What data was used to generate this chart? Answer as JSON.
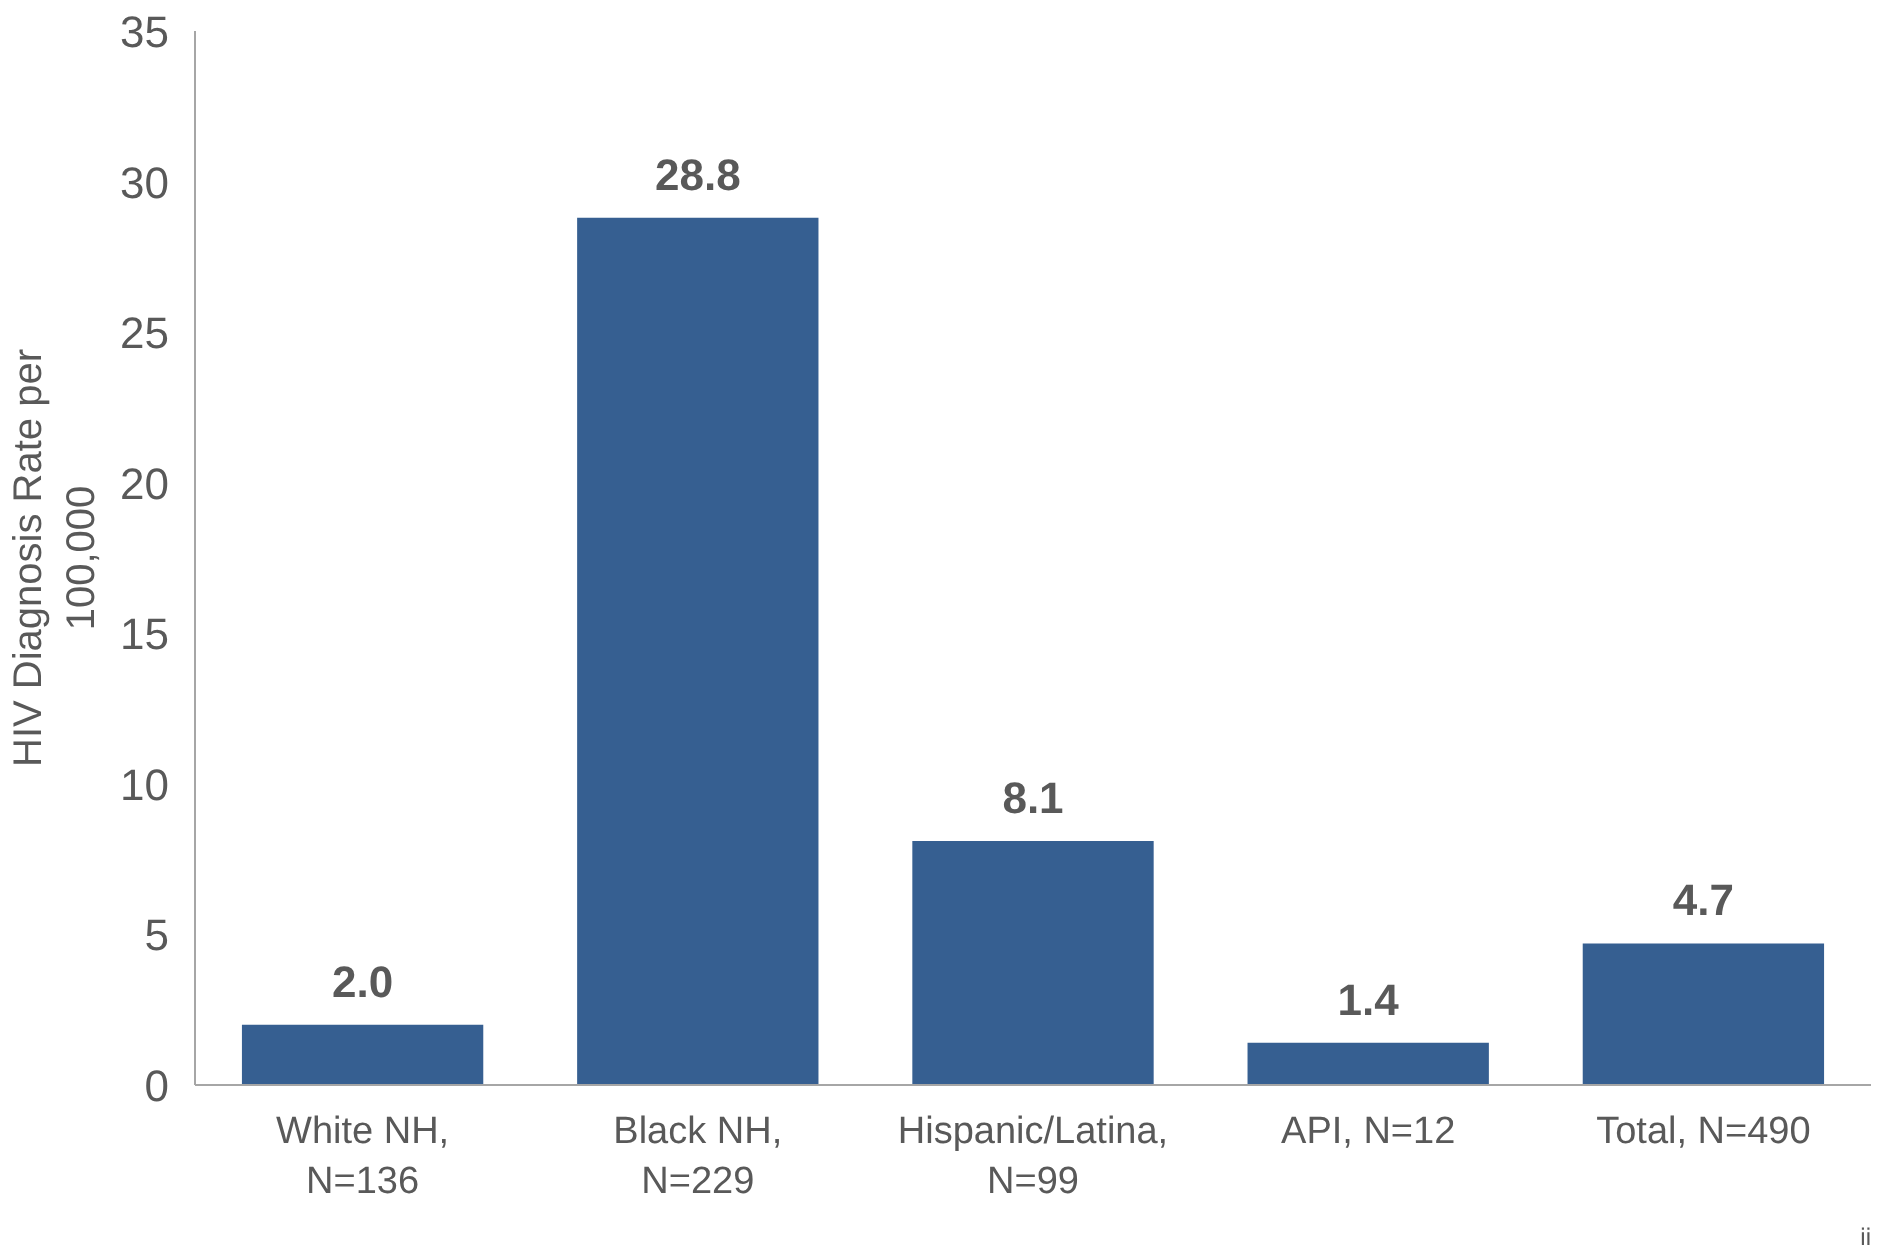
{
  "chart_data": {
    "type": "bar",
    "ylabel": "HIV Diagnosis Rate per\n100,000",
    "categories": [
      "White NH,\nN=136",
      "Black NH,\nN=229",
      "Hispanic/Latina,\nN=99",
      "API, N=12",
      "Total, N=490"
    ],
    "values": [
      2.0,
      28.8,
      8.1,
      1.4,
      4.7
    ],
    "value_labels": [
      "2.0",
      "28.8",
      "8.1",
      "1.4",
      "4.7"
    ],
    "color": "#365f91",
    "ylim": [
      0,
      35
    ],
    "yticks": [
      0,
      5,
      10,
      15,
      20,
      25,
      30,
      35
    ],
    "grid": false,
    "annotations": [
      "ii"
    ]
  }
}
